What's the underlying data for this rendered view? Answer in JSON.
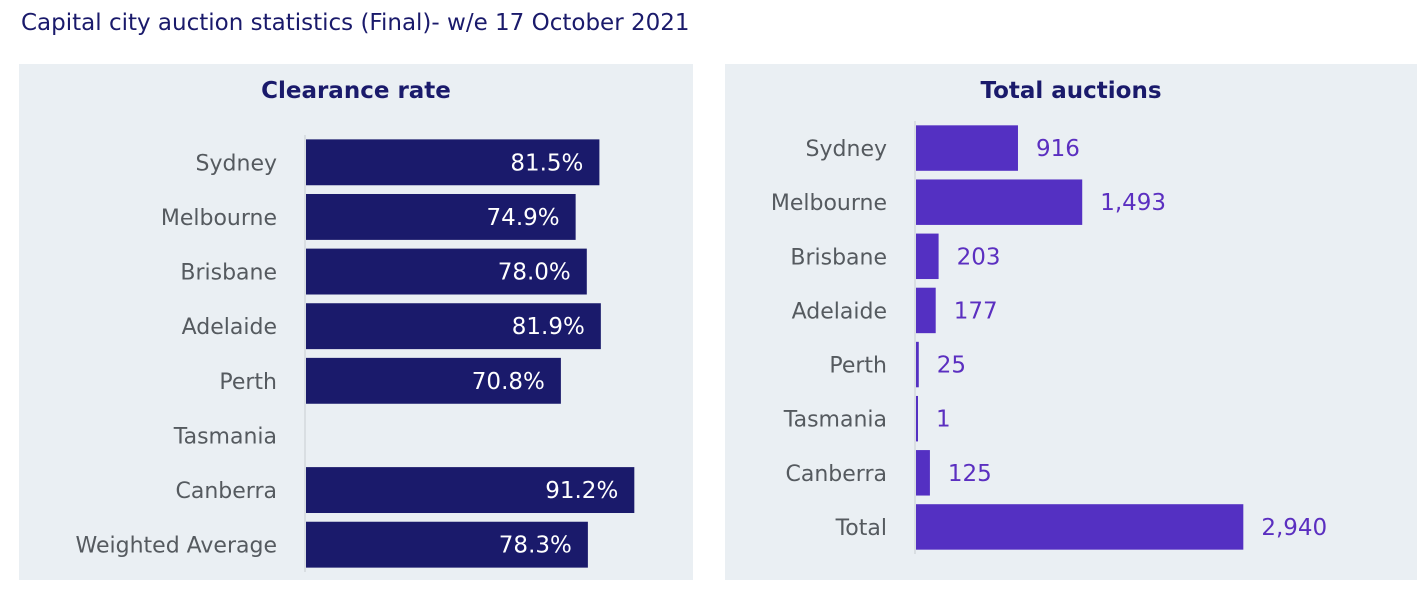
{
  "page": {
    "title": "Capital city auction statistics (Final)- w/e 17 October 2021"
  },
  "colors": {
    "clearance_bar": "#1a1a6b",
    "auctions_bar": "#5430c2",
    "auctions_label": "#5b2fc0",
    "panel_bg": "#eaeff3",
    "category_text": "#555a5f"
  },
  "chart_data": [
    {
      "type": "bar",
      "orientation": "horizontal",
      "title": "Clearance rate",
      "categories": [
        "Sydney",
        "Melbourne",
        "Brisbane",
        "Adelaide",
        "Perth",
        "Tasmania",
        "Canberra",
        "Weighted Average"
      ],
      "values": [
        81.5,
        74.9,
        78.0,
        81.9,
        70.8,
        null,
        91.2,
        78.3
      ],
      "value_labels": [
        "81.5%",
        "74.9%",
        "78.0%",
        "81.9%",
        "70.8%",
        "",
        "91.2%",
        "78.3%"
      ],
      "xlim": [
        0,
        100
      ],
      "grid": false,
      "data_label_position": "inside-end"
    },
    {
      "type": "bar",
      "orientation": "horizontal",
      "title": "Total auctions",
      "categories": [
        "Sydney",
        "Melbourne",
        "Brisbane",
        "Adelaide",
        "Perth",
        "Tasmania",
        "Canberra",
        "Total"
      ],
      "values": [
        916,
        1493,
        203,
        177,
        25,
        1,
        125,
        2940
      ],
      "value_labels": [
        "916",
        "1,493",
        "203",
        "177",
        "25",
        "1",
        "125",
        "2,940"
      ],
      "xlim": [
        0,
        3000
      ],
      "grid": false,
      "data_label_position": "outside-end"
    }
  ]
}
